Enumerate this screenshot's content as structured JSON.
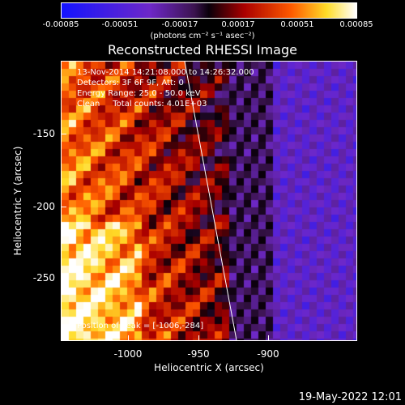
{
  "colorbar": {
    "ticks": [
      "-0.00085",
      "-0.00051",
      "-0.00017",
      "0.00017",
      "0.00051",
      "0.00085"
    ],
    "unit": "(photons cm⁻² s⁻¹ asec⁻²)"
  },
  "title": "Reconstructed RHESSI Image",
  "info": {
    "line1": "13-Nov-2014 14:21:08.000 to 14:26:32.000",
    "line2": "Detectors: 3F 6F 9F, Att: 0",
    "line3": "Energy Range: 25.0 - 50.0 keV",
    "line4": "Clean     Total counts: 4.01E+03"
  },
  "peak": "Position of Peak = [-1006,-284]",
  "axes": {
    "xlabel": "Heliocentric X (arcsec)",
    "ylabel": "Heliocentric Y (arcsec)",
    "xticks": [
      "-1000",
      "-950",
      "-900"
    ],
    "yticks": [
      "-150",
      "-200",
      "-250"
    ]
  },
  "datestamp": "19-May-2022 12:01"
}
